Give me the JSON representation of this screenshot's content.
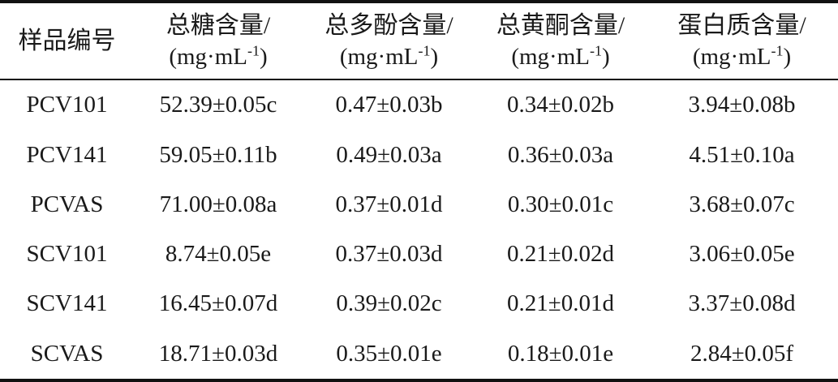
{
  "page": {
    "background": "#ffffff",
    "text_color": "#1a1a1a",
    "rule_color": "#111111"
  },
  "table": {
    "columns": [
      {
        "label": "样品编号",
        "unit_prefix": "",
        "unit_sup": "",
        "unit_suffix": ""
      },
      {
        "label": "总糖含量/",
        "unit_prefix": "(mg·mL",
        "unit_sup": "-1",
        "unit_suffix": ")"
      },
      {
        "label": "总多酚含量/",
        "unit_prefix": "(mg·mL",
        "unit_sup": "-1",
        "unit_suffix": ")"
      },
      {
        "label": "总黄酮含量/",
        "unit_prefix": "(mg·mL",
        "unit_sup": "-1",
        "unit_suffix": ")"
      },
      {
        "label": "蛋白质含量/",
        "unit_prefix": "(mg·mL",
        "unit_sup": "-1",
        "unit_suffix": ")"
      }
    ],
    "rows": [
      {
        "sample": "PCV101",
        "total_sugar": "52.39±0.05c",
        "total_polyphenol": "0.47±0.03b",
        "total_flavonoid": "0.34±0.02b",
        "protein": "3.94±0.08b"
      },
      {
        "sample": "PCV141",
        "total_sugar": "59.05±0.11b",
        "total_polyphenol": "0.49±0.03a",
        "total_flavonoid": "0.36±0.03a",
        "protein": "4.51±0.10a"
      },
      {
        "sample": "PCVAS",
        "total_sugar": "71.00±0.08a",
        "total_polyphenol": "0.37±0.01d",
        "total_flavonoid": "0.30±0.01c",
        "protein": "3.68±0.07c"
      },
      {
        "sample": "SCV101",
        "total_sugar": "8.74±0.05e",
        "total_polyphenol": "0.37±0.03d",
        "total_flavonoid": "0.21±0.02d",
        "protein": "3.06±0.05e"
      },
      {
        "sample": "SCV141",
        "total_sugar": "16.45±0.07d",
        "total_polyphenol": "0.39±0.02c",
        "total_flavonoid": "0.21±0.01d",
        "protein": "3.37±0.08d"
      },
      {
        "sample": "SCVAS",
        "total_sugar": "18.71±0.03d",
        "total_polyphenol": "0.35±0.01e",
        "total_flavonoid": "0.18±0.01e",
        "protein": "2.84±0.05f"
      }
    ]
  },
  "chart_data": {
    "type": "table",
    "title": "",
    "columns": [
      "样品编号",
      "总糖含量/(mg·mL-1)",
      "总多酚含量/(mg·mL-1)",
      "总黄酮含量/(mg·mL-1)",
      "蛋白质含量/(mg·mL-1)"
    ],
    "rows": [
      [
        "PCV101",
        "52.39±0.05c",
        "0.47±0.03b",
        "0.34±0.02b",
        "3.94±0.08b"
      ],
      [
        "PCV141",
        "59.05±0.11b",
        "0.49±0.03a",
        "0.36±0.03a",
        "4.51±0.10a"
      ],
      [
        "PCVAS",
        "71.00±0.08a",
        "0.37±0.01d",
        "0.30±0.01c",
        "3.68±0.07c"
      ],
      [
        "SCV101",
        "8.74±0.05e",
        "0.37±0.03d",
        "0.21±0.02d",
        "3.06±0.05e"
      ],
      [
        "SCV141",
        "16.45±0.07d",
        "0.39±0.02c",
        "0.21±0.01d",
        "3.37±0.08d"
      ],
      [
        "SCVAS",
        "18.71±0.03d",
        "0.35±0.01e",
        "0.18±0.01e",
        "2.84±0.05f"
      ]
    ]
  }
}
